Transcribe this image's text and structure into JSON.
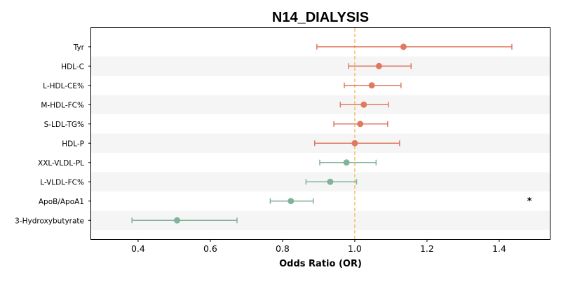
{
  "chart_data": {
    "type": "forest",
    "title": "N14_DIALYSIS",
    "xlabel": "Odds Ratio (OR)",
    "xlim": [
      0.27,
      1.54
    ],
    "xticks": [
      "0.4",
      "0.6",
      "0.8",
      "1.0",
      "1.2",
      "1.4"
    ],
    "reference_line": 1.0,
    "colors": {
      "up": "#e07a5f",
      "down": "#81b29a",
      "reference": "#f2c46d",
      "stripe": "#f5f5f5"
    },
    "rows": [
      {
        "label": "Tyr",
        "or": 1.135,
        "lo": 0.895,
        "hi": 1.435,
        "marker": ""
      },
      {
        "label": "HDL-C",
        "or": 1.067,
        "lo": 0.983,
        "hi": 1.156,
        "marker": ""
      },
      {
        "label": "L-HDL-CE%",
        "or": 1.047,
        "lo": 0.971,
        "hi": 1.128,
        "marker": ""
      },
      {
        "label": "M-HDL-FC%",
        "or": 1.025,
        "lo": 0.96,
        "hi": 1.093,
        "marker": ""
      },
      {
        "label": "S-LDL-TG%",
        "or": 1.015,
        "lo": 0.942,
        "hi": 1.091,
        "marker": ""
      },
      {
        "label": "HDL-P",
        "or": 1.0,
        "lo": 0.889,
        "hi": 1.124,
        "marker": ""
      },
      {
        "label": "XXL-VLDL-PL",
        "or": 0.977,
        "lo": 0.903,
        "hi": 1.059,
        "marker": ""
      },
      {
        "label": "L-VLDL-FC%",
        "or": 0.932,
        "lo": 0.865,
        "hi": 1.005,
        "marker": ""
      },
      {
        "label": "ApoB/ApoA1",
        "or": 0.823,
        "lo": 0.766,
        "hi": 0.885,
        "marker": "*"
      },
      {
        "label": "3-Hydroxybutyrate",
        "or": 0.508,
        "lo": 0.383,
        "hi": 0.674,
        "marker": ""
      }
    ]
  }
}
